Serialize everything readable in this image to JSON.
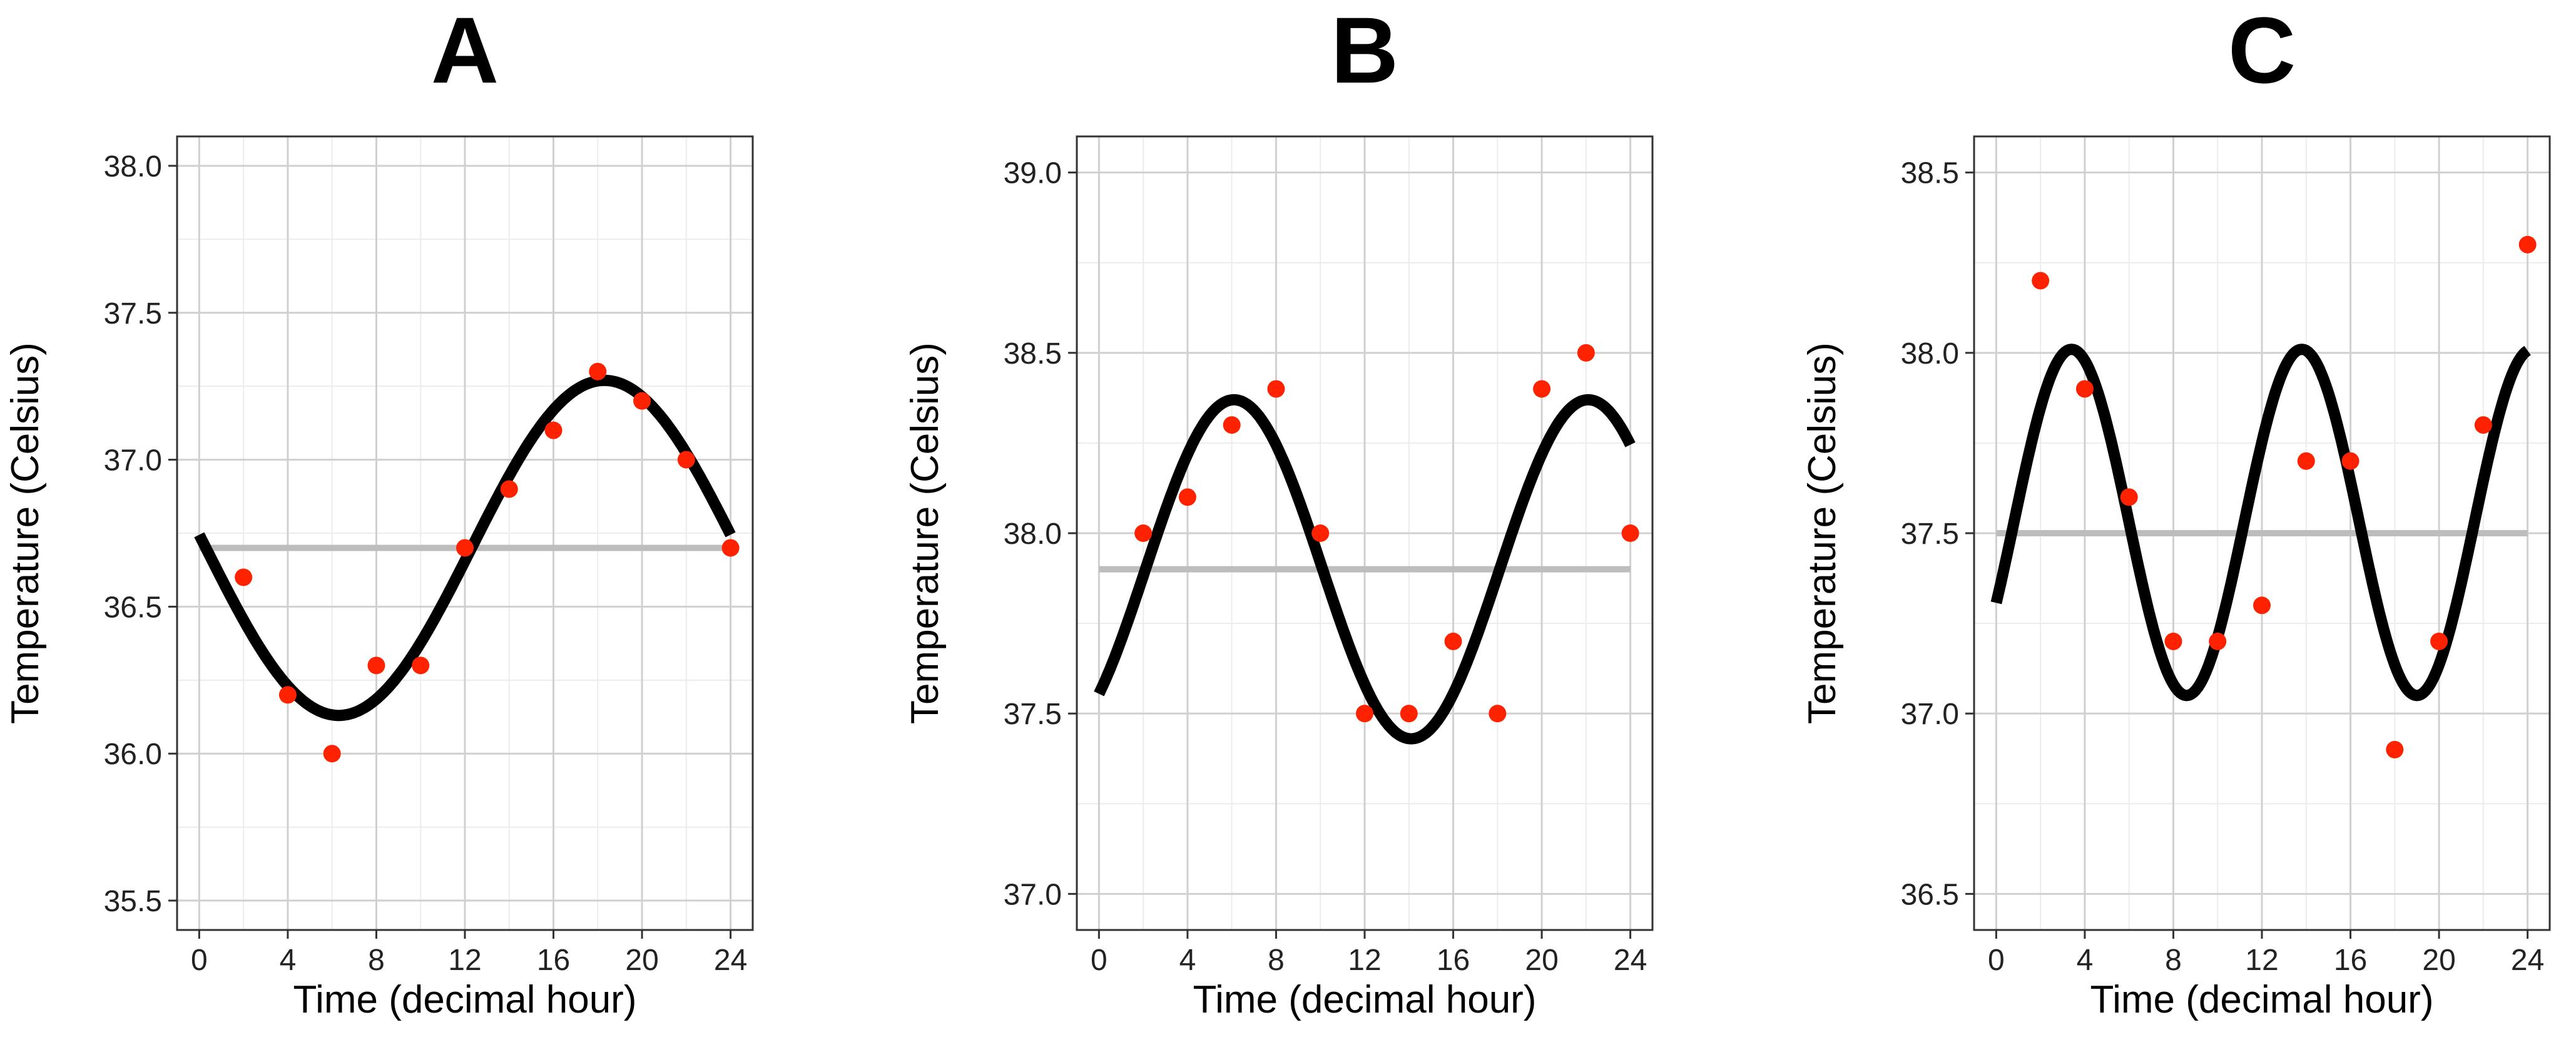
{
  "chart_data": [
    {
      "type": "scatter",
      "title": "A",
      "xlabel": "Time (decimal hour)",
      "ylabel": "Temperature (Celsius)",
      "xlim": [
        -1,
        25
      ],
      "ylim": [
        35.4,
        38.1
      ],
      "xticks": [
        0,
        4,
        8,
        12,
        16,
        20,
        24
      ],
      "yticks": [
        35.5,
        36.0,
        36.5,
        37.0,
        37.5,
        38.0
      ],
      "xtick_labels": [
        "0",
        "4",
        "8",
        "12",
        "16",
        "20",
        "24"
      ],
      "ytick_labels": [
        "35.5",
        "36.0",
        "36.5",
        "37.0",
        "37.5",
        "38.0"
      ],
      "grid": true,
      "points": {
        "x": [
          2,
          4,
          6,
          8,
          10,
          12,
          14,
          16,
          18,
          20,
          22,
          24
        ],
        "y": [
          36.6,
          36.2,
          36.0,
          36.3,
          36.3,
          36.7,
          36.9,
          37.1,
          37.3,
          37.2,
          37.0,
          36.7
        ],
        "color": "#ff2200"
      },
      "fit": {
        "mesor": 36.7,
        "amplitude": 0.57,
        "period": 24,
        "peak_hour": 18.3,
        "x_range": [
          0,
          24
        ],
        "color": "#000000"
      },
      "mesor_line": {
        "y": 36.7,
        "x_range": [
          0,
          24
        ],
        "color": "#bdbdbd"
      }
    },
    {
      "type": "scatter",
      "title": "B",
      "xlabel": "Time (decimal hour)",
      "ylabel": "Temperature (Celsius)",
      "xlim": [
        -1,
        25
      ],
      "ylim": [
        36.9,
        39.1
      ],
      "xticks": [
        0,
        4,
        8,
        12,
        16,
        20,
        24
      ],
      "yticks": [
        37.0,
        37.5,
        38.0,
        38.5,
        39.0
      ],
      "xtick_labels": [
        "0",
        "4",
        "8",
        "12",
        "16",
        "20",
        "24"
      ],
      "ytick_labels": [
        "37.0",
        "37.5",
        "38.0",
        "38.5",
        "39.0"
      ],
      "grid": true,
      "points": {
        "x": [
          2,
          4,
          6,
          8,
          10,
          12,
          14,
          16,
          18,
          20,
          22,
          24
        ],
        "y": [
          38.0,
          38.1,
          38.3,
          38.4,
          38.0,
          37.5,
          37.5,
          37.7,
          37.5,
          38.4,
          38.5,
          38.0
        ],
        "color": "#ff2200"
      },
      "fit": {
        "mesor": 37.9,
        "amplitude": 0.47,
        "period": 16,
        "peak_hour": 6.1,
        "x_range": [
          0,
          24
        ],
        "color": "#000000"
      },
      "mesor_line": {
        "y": 37.9,
        "x_range": [
          0,
          24
        ],
        "color": "#bdbdbd"
      }
    },
    {
      "type": "scatter",
      "title": "C",
      "xlabel": "Time (decimal hour)",
      "ylabel": "Temperature (Celsius)",
      "xlim": [
        -1,
        25
      ],
      "ylim": [
        36.4,
        38.6
      ],
      "xticks": [
        0,
        4,
        8,
        12,
        16,
        20,
        24
      ],
      "yticks": [
        36.5,
        37.0,
        37.5,
        38.0,
        38.5
      ],
      "xtick_labels": [
        "0",
        "4",
        "8",
        "12",
        "16",
        "20",
        "24"
      ],
      "ytick_labels": [
        "36.5",
        "37.0",
        "37.5",
        "38.0",
        "38.5"
      ],
      "grid": true,
      "points": {
        "x": [
          2,
          4,
          6,
          8,
          10,
          12,
          14,
          16,
          18,
          20,
          22,
          24
        ],
        "y": [
          38.2,
          37.9,
          37.6,
          37.2,
          37.2,
          37.3,
          37.7,
          37.7,
          36.9,
          37.2,
          37.8,
          38.3
        ],
        "color": "#ff2200"
      },
      "fit": {
        "mesor": 37.53,
        "amplitude": 0.48,
        "period": 10.4,
        "peak_hour": 3.4,
        "x_range": [
          0,
          24
        ],
        "color": "#000000"
      },
      "mesor_line": {
        "y": 37.5,
        "x_range": [
          0,
          24
        ],
        "color": "#bdbdbd"
      }
    }
  ]
}
